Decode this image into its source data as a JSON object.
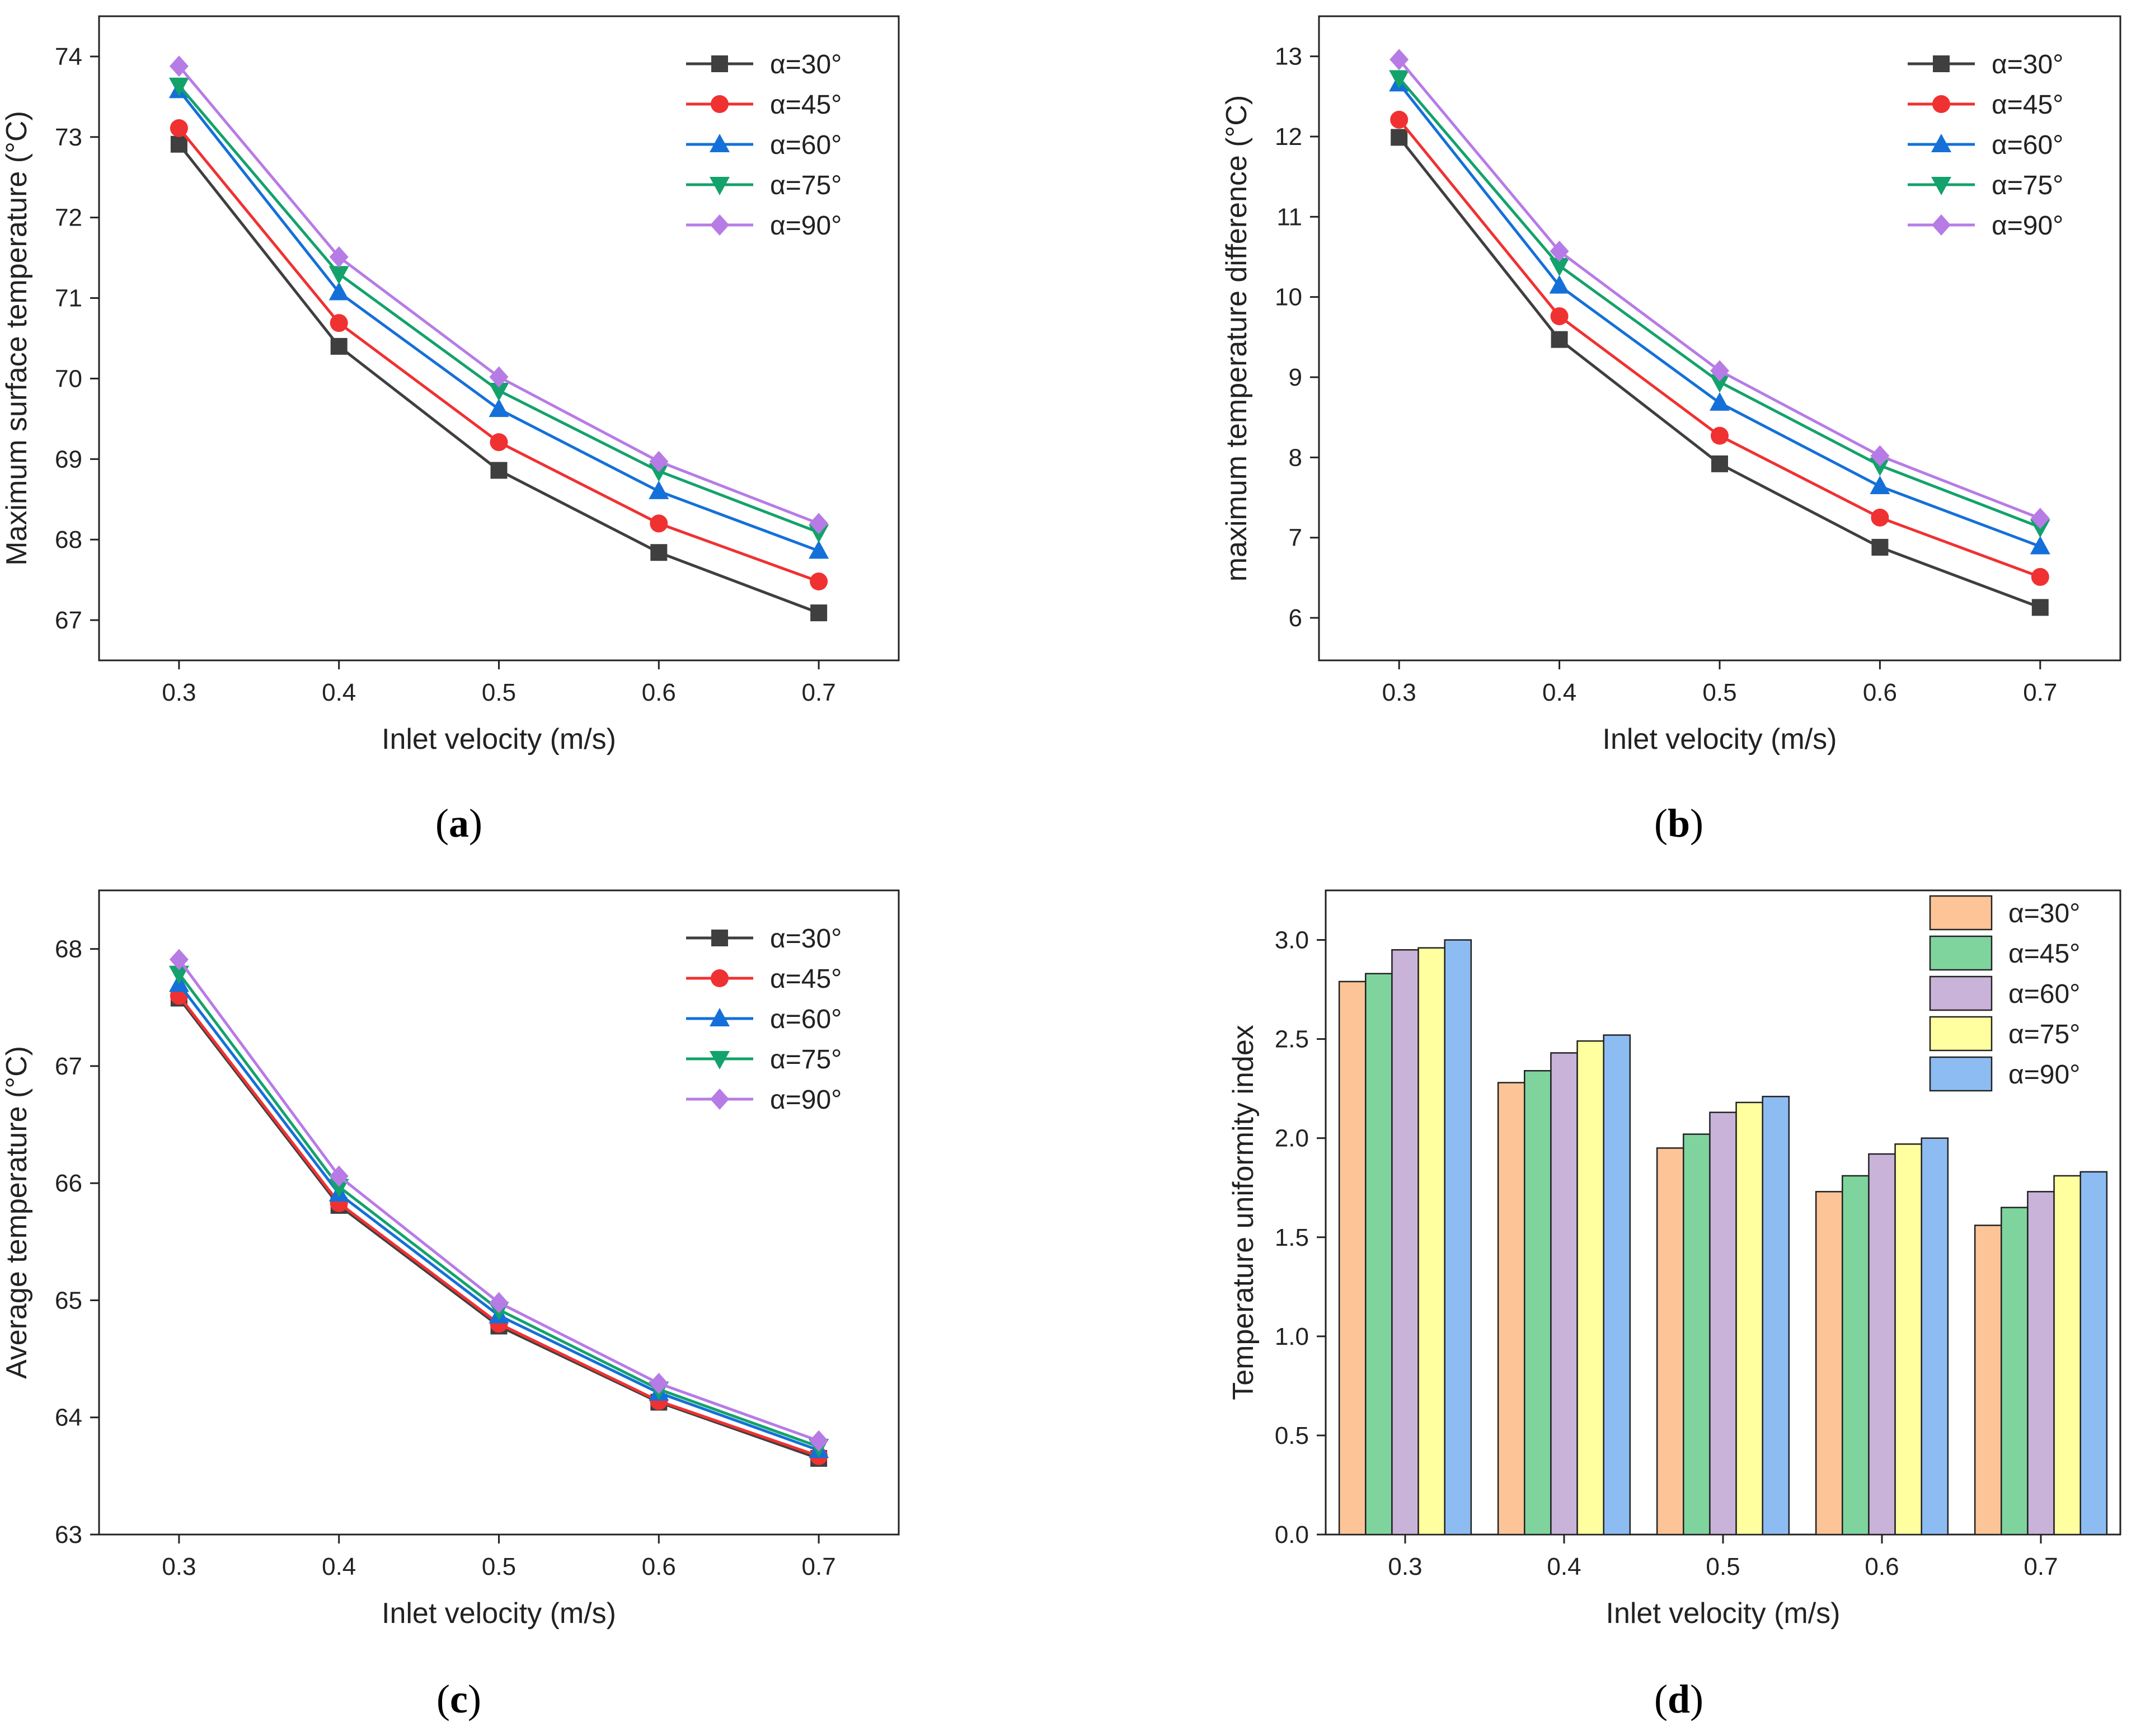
{
  "chart_data": [
    {
      "type": "line",
      "panel_label": "a",
      "title": "",
      "xlabel": "Inlet velocity (m/s)",
      "ylabel": "Maximum surface temperature (°C)",
      "x": [
        0.3,
        0.4,
        0.5,
        0.6,
        0.7
      ],
      "x_tick_labels": [
        "0.3",
        "0.4",
        "0.5",
        "0.6",
        "0.7"
      ],
      "xlim": [
        0.25,
        0.75
      ],
      "ylim": [
        66.5,
        74.5
      ],
      "y_ticks": [
        67,
        68,
        69,
        70,
        71,
        72,
        73,
        74
      ],
      "y_tick_labels": [
        "67",
        "68",
        "69",
        "70",
        "71",
        "72",
        "73",
        "74"
      ],
      "grid": false,
      "legend_position": "top-right",
      "series": [
        {
          "name": "α=30°",
          "color": "#3f3f3f",
          "marker": "square",
          "values": [
            72.91,
            70.4,
            68.86,
            67.84,
            67.09
          ]
        },
        {
          "name": "α=45°",
          "color": "#f03131",
          "marker": "circle",
          "values": [
            73.11,
            70.69,
            69.21,
            68.2,
            67.48
          ]
        },
        {
          "name": "α=60°",
          "color": "#1470d8",
          "marker": "triangle-up",
          "values": [
            73.58,
            71.07,
            69.62,
            68.6,
            67.86
          ]
        },
        {
          "name": "α=75°",
          "color": "#13a26b",
          "marker": "triangle-down",
          "values": [
            73.64,
            71.3,
            69.85,
            68.85,
            68.09
          ]
        },
        {
          "name": "α=90°",
          "color": "#b77be6",
          "marker": "diamond",
          "values": [
            73.88,
            71.51,
            70.02,
            68.97,
            68.2
          ]
        }
      ]
    },
    {
      "type": "line",
      "panel_label": "b",
      "title": "",
      "xlabel": "Inlet velocity (m/s)",
      "ylabel": "maximum temperature difference (°C)",
      "x": [
        0.3,
        0.4,
        0.5,
        0.6,
        0.7
      ],
      "x_tick_labels": [
        "0.3",
        "0.4",
        "0.5",
        "0.6",
        "0.7"
      ],
      "xlim": [
        0.25,
        0.75
      ],
      "ylim": [
        5.47,
        13.5
      ],
      "y_ticks": [
        6,
        7,
        8,
        9,
        10,
        11,
        12,
        13
      ],
      "y_tick_labels": [
        "6",
        "7",
        "8",
        "9",
        "10",
        "11",
        "12",
        "13"
      ],
      "grid": false,
      "legend_position": "top-right",
      "series": [
        {
          "name": "α=30°",
          "color": "#3f3f3f",
          "marker": "square",
          "values": [
            11.99,
            9.47,
            7.92,
            6.88,
            6.13
          ]
        },
        {
          "name": "α=45°",
          "color": "#f03131",
          "marker": "circle",
          "values": [
            12.21,
            9.76,
            8.27,
            7.25,
            6.51
          ]
        },
        {
          "name": "α=60°",
          "color": "#1470d8",
          "marker": "triangle-up",
          "values": [
            12.66,
            10.14,
            8.68,
            7.64,
            6.89
          ]
        },
        {
          "name": "α=75°",
          "color": "#13a26b",
          "marker": "triangle-down",
          "values": [
            12.73,
            10.39,
            8.94,
            7.9,
            7.13
          ]
        },
        {
          "name": "α=90°",
          "color": "#b77be6",
          "marker": "diamond",
          "values": [
            12.96,
            10.57,
            9.08,
            8.02,
            7.24
          ]
        }
      ]
    },
    {
      "type": "line",
      "panel_label": "c",
      "title": "",
      "xlabel": "Inlet velocity (m/s)",
      "ylabel": "Average temperature (°C)",
      "x": [
        0.3,
        0.4,
        0.5,
        0.6,
        0.7
      ],
      "x_tick_labels": [
        "0.3",
        "0.4",
        "0.5",
        "0.6",
        "0.7"
      ],
      "xlim": [
        0.25,
        0.75
      ],
      "ylim": [
        63,
        68.5
      ],
      "y_ticks": [
        63,
        64,
        65,
        66,
        67,
        68
      ],
      "y_tick_labels": [
        "63",
        "64",
        "65",
        "66",
        "67",
        "68"
      ],
      "grid": false,
      "legend_position": "top-right",
      "series": [
        {
          "name": "α=30°",
          "color": "#3f3f3f",
          "marker": "square",
          "values": [
            67.58,
            65.81,
            64.78,
            64.13,
            63.65
          ]
        },
        {
          "name": "α=45°",
          "color": "#f03131",
          "marker": "circle",
          "values": [
            67.6,
            65.83,
            64.8,
            64.14,
            63.67
          ]
        },
        {
          "name": "α=60°",
          "color": "#1470d8",
          "marker": "triangle-up",
          "values": [
            67.7,
            65.91,
            64.87,
            64.21,
            63.72
          ]
        },
        {
          "name": "α=75°",
          "color": "#13a26b",
          "marker": "triangle-down",
          "values": [
            67.79,
            65.97,
            64.92,
            64.24,
            63.75
          ]
        },
        {
          "name": "α=90°",
          "color": "#b77be6",
          "marker": "diamond",
          "values": [
            67.91,
            66.06,
            64.98,
            64.29,
            63.8
          ]
        }
      ]
    },
    {
      "type": "bar",
      "panel_label": "d",
      "title": "",
      "xlabel": "Inlet velocity (m/s)",
      "ylabel": "Temperature uniformity index",
      "categories": [
        "0.3",
        "0.4",
        "0.5",
        "0.6",
        "0.7"
      ],
      "xlim": [
        0.25,
        0.75
      ],
      "ylim": [
        0,
        3.25
      ],
      "y_ticks": [
        0,
        0.5,
        1.0,
        1.5,
        2.0,
        2.5,
        3.0
      ],
      "y_tick_labels": [
        "0.0",
        "0.5",
        "1.0",
        "1.5",
        "2.0",
        "2.5",
        "3.0"
      ],
      "grid": false,
      "legend_position": "top-right",
      "series": [
        {
          "name": "α=30°",
          "color": "#fcc497",
          "values": [
            2.79,
            2.28,
            1.95,
            1.73,
            1.56
          ]
        },
        {
          "name": "α=45°",
          "color": "#7fd49e",
          "values": [
            2.83,
            2.34,
            2.02,
            1.81,
            1.65
          ]
        },
        {
          "name": "α=60°",
          "color": "#c9b3d9",
          "values": [
            2.95,
            2.43,
            2.13,
            1.92,
            1.73
          ]
        },
        {
          "name": "α=75°",
          "color": "#ffff9f",
          "values": [
            2.96,
            2.49,
            2.18,
            1.97,
            1.81
          ]
        },
        {
          "name": "α=90°",
          "color": "#8cbcf2",
          "values": [
            3.0,
            2.52,
            2.21,
            2.0,
            1.83
          ]
        }
      ]
    }
  ]
}
